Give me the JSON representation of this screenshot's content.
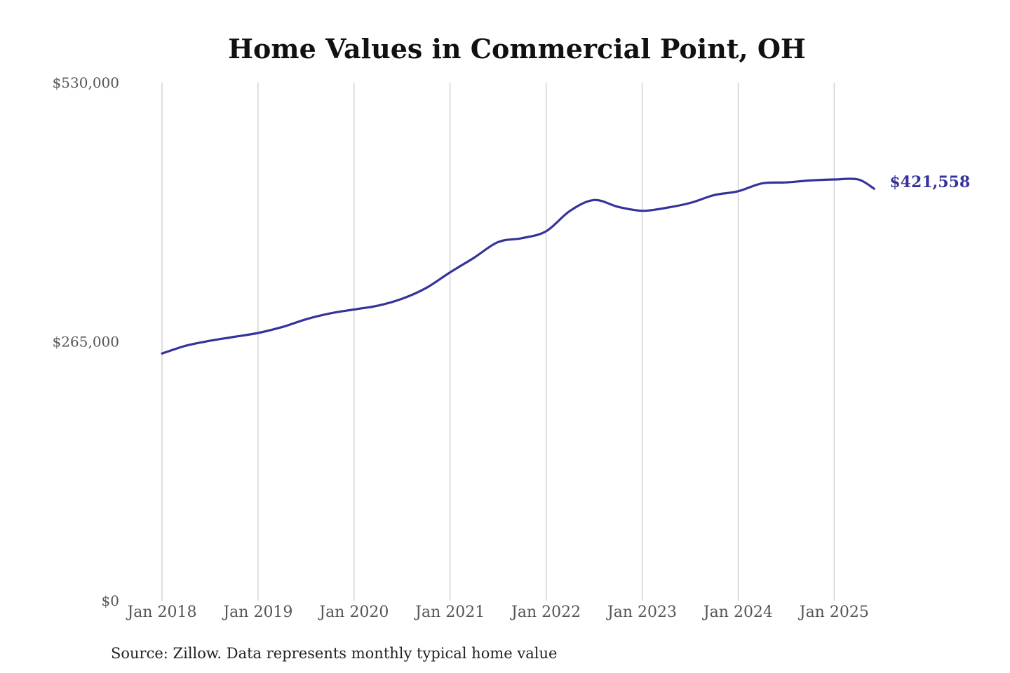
{
  "chart_data": {
    "type": "line",
    "title": "Home Values in Commercial Point, OH",
    "xlabel": "",
    "ylabel": "",
    "ylim": [
      0,
      530000
    ],
    "y_ticks": [
      {
        "value": 0,
        "label": "$0"
      },
      {
        "value": 265000,
        "label": "$265,000"
      },
      {
        "value": 530000,
        "label": "$530,000"
      }
    ],
    "x_ticks": [
      {
        "value": "2018-01",
        "label": "Jan 2018"
      },
      {
        "value": "2019-01",
        "label": "Jan 2019"
      },
      {
        "value": "2020-01",
        "label": "Jan 2020"
      },
      {
        "value": "2021-01",
        "label": "Jan 2021"
      },
      {
        "value": "2022-01",
        "label": "Jan 2022"
      },
      {
        "value": "2023-01",
        "label": "Jan 2023"
      },
      {
        "value": "2024-01",
        "label": "Jan 2024"
      },
      {
        "value": "2025-01",
        "label": "Jan 2025"
      }
    ],
    "xlim": [
      "2018-01",
      "2025-06"
    ],
    "grid": {
      "vertical": true,
      "horizontal": false
    },
    "series": [
      {
        "color": "#35339a",
        "end_label": "$421,558",
        "x": [
          "2018-01",
          "2018-04",
          "2018-07",
          "2018-10",
          "2019-01",
          "2019-04",
          "2019-07",
          "2019-10",
          "2020-01",
          "2020-04",
          "2020-07",
          "2020-10",
          "2021-01",
          "2021-04",
          "2021-07",
          "2021-10",
          "2022-01",
          "2022-04",
          "2022-07",
          "2022-10",
          "2023-01",
          "2023-04",
          "2023-07",
          "2023-10",
          "2024-01",
          "2024-04",
          "2024-07",
          "2024-10",
          "2025-01",
          "2025-04",
          "2025-06"
        ],
        "values": [
          253000,
          261000,
          266000,
          270000,
          274000,
          280000,
          288000,
          294000,
          298000,
          302000,
          309000,
          320000,
          336000,
          351000,
          367000,
          371000,
          378000,
          399000,
          410000,
          403000,
          399000,
          402000,
          407000,
          415000,
          419000,
          427000,
          428000,
          430000,
          431000,
          431000,
          421558
        ]
      }
    ]
  },
  "footer": {
    "source": "Source: Zillow. Data represents monthly typical home value"
  }
}
